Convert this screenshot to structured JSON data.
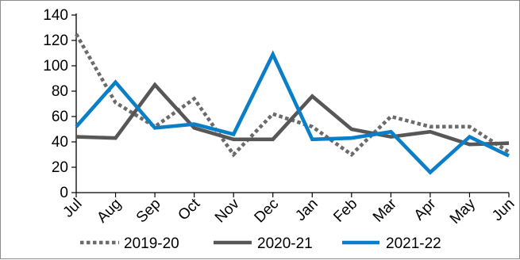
{
  "chart_data": {
    "type": "line",
    "categories": [
      "Jul",
      "Aug",
      "Sep",
      "Oct",
      "Nov",
      "Dec",
      "Jan",
      "Feb",
      "Mar",
      "Apr",
      "May",
      "Jun"
    ],
    "series": [
      {
        "name": "2019-20",
        "values": [
          125,
          71,
          52,
          74,
          30,
          62,
          52,
          30,
          60,
          52,
          52,
          32
        ],
        "color": "#6b6b6b",
        "style": "dotted"
      },
      {
        "name": "2020-21",
        "values": [
          44,
          43,
          85,
          51,
          42,
          42,
          76,
          50,
          44,
          48,
          38,
          39
        ],
        "color": "#575757",
        "style": "solid"
      },
      {
        "name": "2021-22",
        "values": [
          52,
          87,
          51,
          54,
          46,
          109,
          42,
          43,
          48,
          16,
          44,
          29
        ],
        "color": "#0a7fc7",
        "style": "solid"
      }
    ],
    "y_ticks": [
      "0",
      "20",
      "40",
      "60",
      "80",
      "100",
      "120",
      "140"
    ],
    "ylim": [
      0,
      140
    ],
    "grid": false,
    "legend_position": "bottom",
    "title": "",
    "xlabel": "",
    "ylabel": ""
  }
}
